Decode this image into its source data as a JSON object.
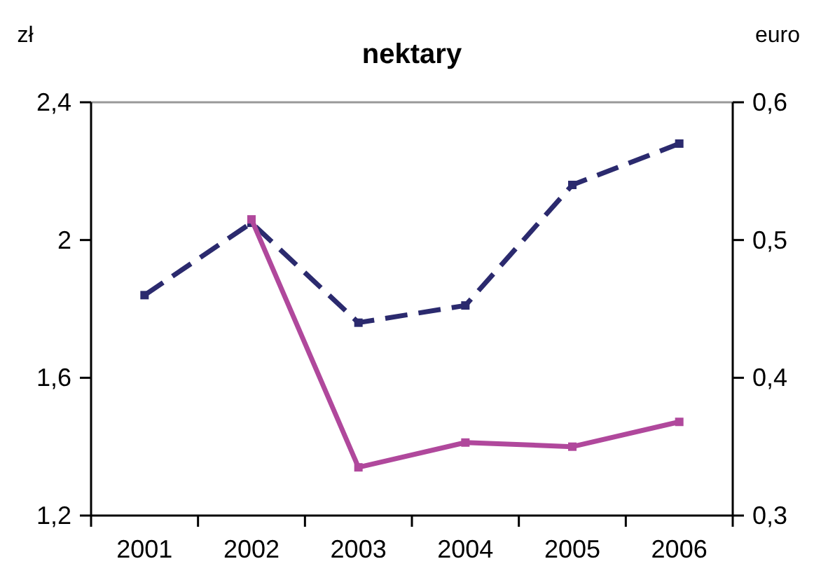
{
  "chart_data": {
    "type": "line",
    "title": "nektary",
    "ylabel": "zł",
    "y2label": "euro",
    "categories": [
      "2001",
      "2002",
      "2003",
      "2004",
      "2005",
      "2006"
    ],
    "series": [
      {
        "color": "#2b2a6e",
        "line_style": "dashed",
        "values": [
          1.84,
          2.05,
          1.76,
          1.81,
          2.16,
          2.28
        ]
      },
      {
        "color": "#b0489c",
        "line_style": "solid",
        "axis": "y2",
        "values": [
          null,
          0.515,
          0.335,
          0.353,
          0.35,
          0.368
        ]
      }
    ],
    "ylim": [
      1.2,
      2.4
    ],
    "yticks": [
      {
        "value": 1.2,
        "label": "1,2"
      },
      {
        "value": 1.6,
        "label": "1,6"
      },
      {
        "value": 2,
        "label": "2"
      },
      {
        "value": 2.4,
        "label": "2,4"
      }
    ],
    "y2lim": [
      0.3,
      0.6
    ],
    "y2ticks": [
      {
        "value": 0.3,
        "label": "0,3"
      },
      {
        "value": 0.4,
        "label": "0,4"
      },
      {
        "value": 0.5,
        "label": "0,5"
      },
      {
        "value": 0.6,
        "label": "0,6"
      }
    ],
    "marker": "square",
    "grid": false
  }
}
